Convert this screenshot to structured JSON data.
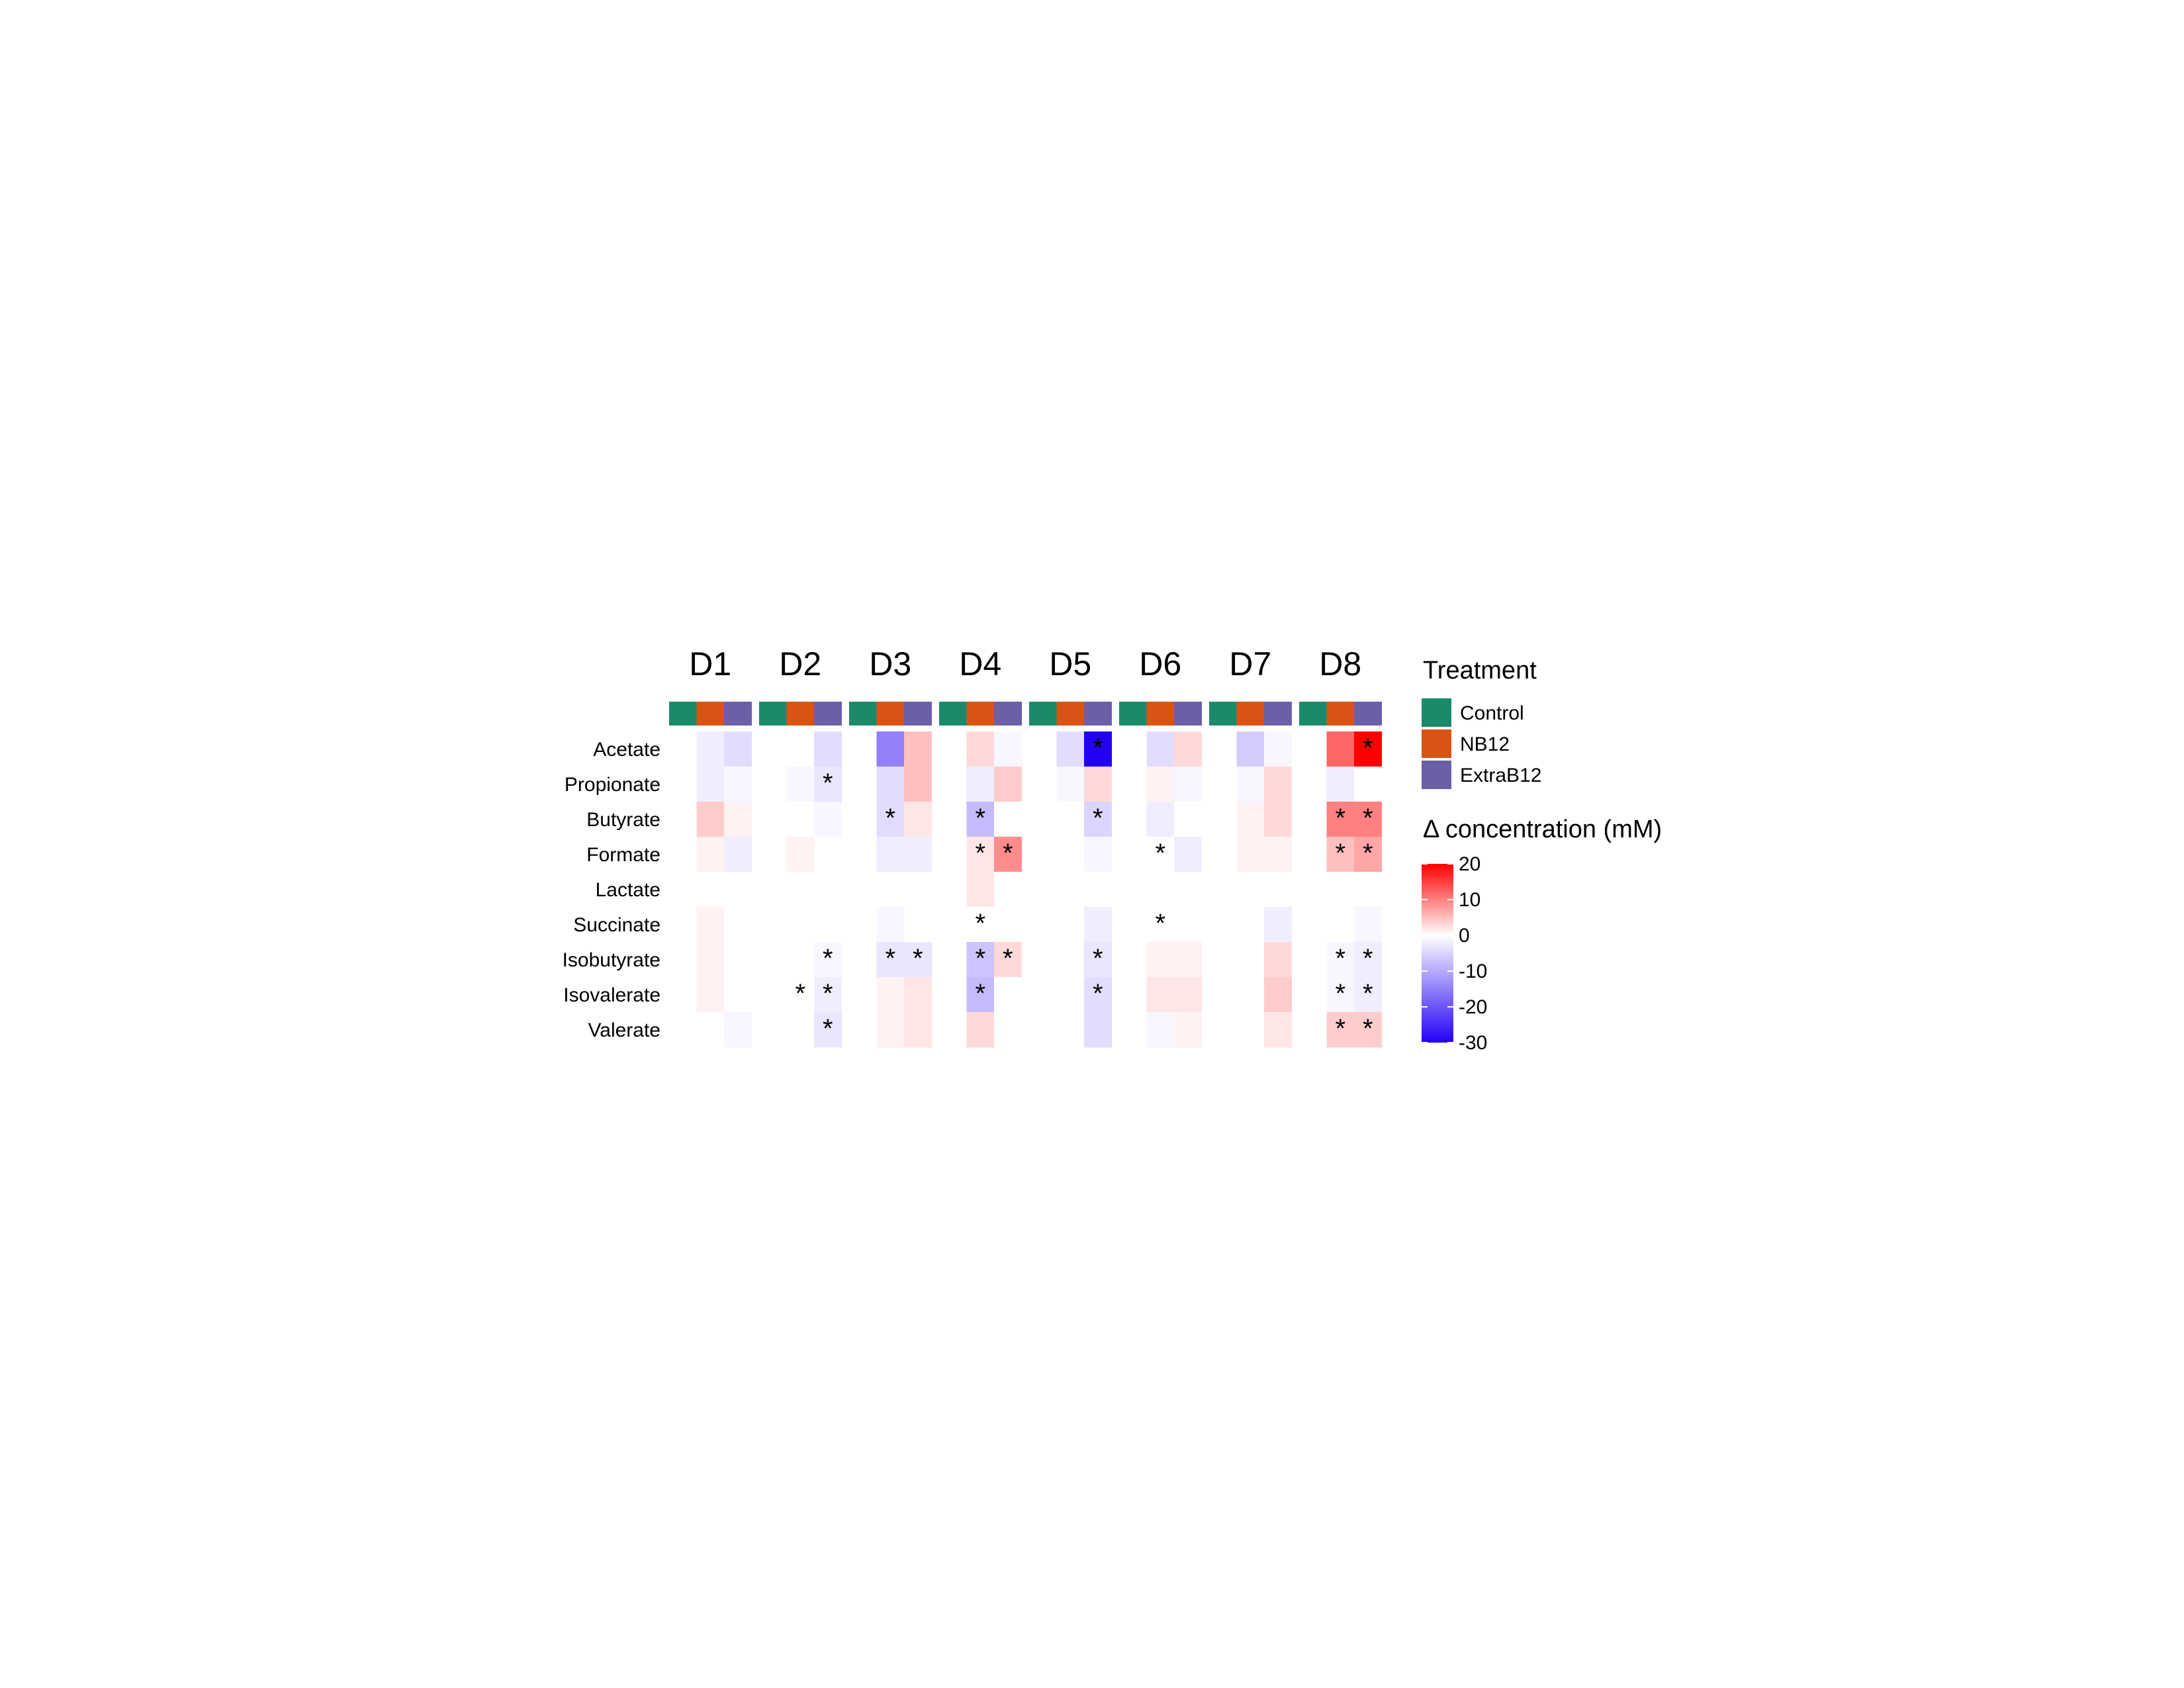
{
  "chart_data": {
    "type": "heatmap",
    "title": "",
    "xlabel": "",
    "ylabel": "",
    "columns": [
      "D1",
      "D2",
      "D3",
      "D4",
      "D5",
      "D6",
      "D7",
      "D8"
    ],
    "rows": [
      "Acetate",
      "Propionate",
      "Butyrate",
      "Formate",
      "Lactate",
      "Succinate",
      "Isobutyrate",
      "Isovalerate",
      "Valerate"
    ],
    "treatments": [
      {
        "name": "Control",
        "color": "#1B8A6B"
      },
      {
        "name": "NB12",
        "color": "#D95314"
      },
      {
        "name": "ExtraB12",
        "color": "#6A5FA8"
      }
    ],
    "treatment_legend_title": "Treatment",
    "colorbar": {
      "title": "Δ concentration (mM)",
      "range": [
        -30,
        20
      ],
      "ticks": [
        20,
        10,
        0,
        -10,
        -20,
        -30
      ],
      "low_color": "#2200F5",
      "mid_color": "#FFFFFF",
      "high_color": "#FF0000"
    },
    "values": {
      "D1": [
        [
          0,
          -2,
          -4
        ],
        [
          0,
          -2,
          -1
        ],
        [
          0,
          4,
          1
        ],
        [
          0,
          1,
          -2
        ],
        [
          0,
          0,
          0
        ],
        [
          0,
          1,
          0
        ],
        [
          0,
          1,
          0
        ],
        [
          0,
          1,
          0
        ],
        [
          0,
          0,
          -1
        ]
      ],
      "D2": [
        [
          0,
          0,
          -4
        ],
        [
          0,
          -1,
          -3
        ],
        [
          0,
          0,
          -1
        ],
        [
          0,
          1,
          0
        ],
        [
          0,
          0,
          0
        ],
        [
          0,
          0,
          0
        ],
        [
          0,
          0,
          -1
        ],
        [
          0,
          0,
          -2
        ],
        [
          0,
          0,
          -3
        ]
      ],
      "D3": [
        [
          0,
          -15,
          5
        ],
        [
          0,
          -4,
          5
        ],
        [
          0,
          -4,
          2
        ],
        [
          0,
          -2,
          -2
        ],
        [
          0,
          0,
          0
        ],
        [
          0,
          -1,
          0
        ],
        [
          0,
          -3,
          -3
        ],
        [
          0,
          1,
          2
        ],
        [
          0,
          1,
          2
        ]
      ],
      "D4": [
        [
          0,
          3,
          -1
        ],
        [
          0,
          -2,
          4
        ],
        [
          0,
          -8,
          0
        ],
        [
          0,
          2,
          9
        ],
        [
          0,
          2,
          0
        ],
        [
          0,
          0,
          0
        ],
        [
          0,
          -7,
          3
        ],
        [
          0,
          -8,
          0
        ],
        [
          0,
          3,
          0
        ]
      ],
      "D5": [
        [
          0,
          -4,
          -35
        ],
        [
          0,
          -1,
          3
        ],
        [
          0,
          0,
          -5
        ],
        [
          0,
          0,
          -1
        ],
        [
          0,
          0,
          0
        ],
        [
          0,
          0,
          -2
        ],
        [
          0,
          0,
          -3
        ],
        [
          0,
          0,
          -4
        ],
        [
          0,
          0,
          -4
        ]
      ],
      "D6": [
        [
          0,
          -4,
          3
        ],
        [
          0,
          1,
          -1
        ],
        [
          0,
          -2,
          0
        ],
        [
          0,
          0,
          -2
        ],
        [
          0,
          0,
          0
        ],
        [
          0,
          0,
          0
        ],
        [
          0,
          1,
          1
        ],
        [
          0,
          2,
          2
        ],
        [
          0,
          -1,
          1
        ]
      ],
      "D7": [
        [
          0,
          -6,
          -1
        ],
        [
          0,
          -1,
          3
        ],
        [
          0,
          1,
          3
        ],
        [
          0,
          1,
          1
        ],
        [
          0,
          0,
          0
        ],
        [
          0,
          0,
          -2
        ],
        [
          0,
          0,
          3
        ],
        [
          0,
          0,
          4
        ],
        [
          0,
          0,
          2
        ]
      ],
      "D8": [
        [
          0,
          12,
          21
        ],
        [
          0,
          -2,
          0
        ],
        [
          0,
          10,
          10
        ],
        [
          0,
          5,
          7
        ],
        [
          0,
          0,
          0
        ],
        [
          0,
          0,
          -1
        ],
        [
          0,
          -1,
          -2
        ],
        [
          0,
          -1,
          -2
        ],
        [
          0,
          4,
          4
        ]
      ]
    },
    "significant": {
      "D1": [],
      "D2": [
        [
          1,
          2
        ],
        [
          6,
          2
        ],
        [
          7,
          1
        ],
        [
          7,
          2
        ],
        [
          8,
          2
        ]
      ],
      "D3": [
        [
          2,
          1
        ],
        [
          6,
          1
        ],
        [
          6,
          2
        ]
      ],
      "D4": [
        [
          2,
          1
        ],
        [
          3,
          1
        ],
        [
          3,
          2
        ],
        [
          5,
          1
        ],
        [
          6,
          1
        ],
        [
          6,
          2
        ],
        [
          7,
          1
        ]
      ],
      "D5": [
        [
          0,
          2
        ],
        [
          2,
          2
        ],
        [
          6,
          2
        ],
        [
          7,
          2
        ]
      ],
      "D6": [
        [
          3,
          1
        ],
        [
          5,
          1
        ]
      ],
      "D7": [],
      "D8": [
        [
          0,
          2
        ],
        [
          2,
          1
        ],
        [
          2,
          2
        ],
        [
          3,
          1
        ],
        [
          3,
          2
        ],
        [
          6,
          1
        ],
        [
          6,
          2
        ],
        [
          7,
          1
        ],
        [
          7,
          2
        ],
        [
          8,
          1
        ],
        [
          8,
          2
        ]
      ]
    },
    "significance_marker": "*"
  }
}
